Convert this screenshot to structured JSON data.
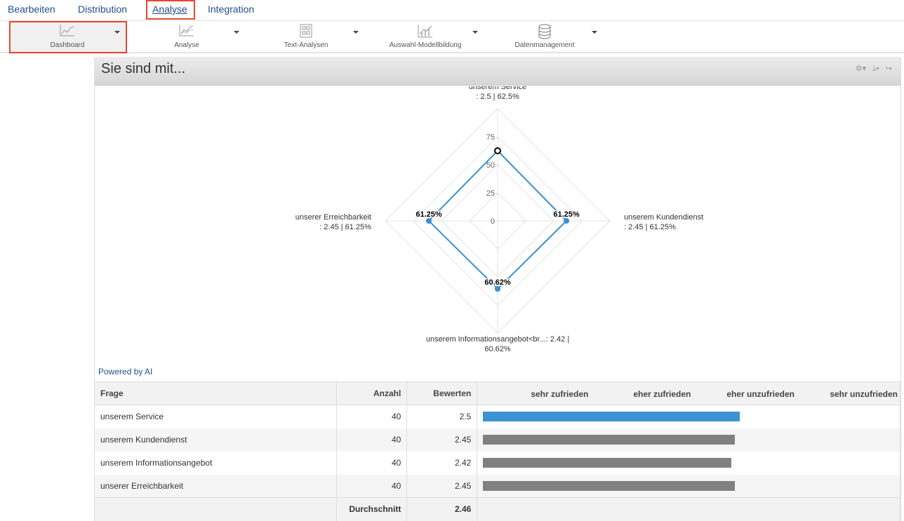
{
  "topnav": {
    "items": [
      {
        "label": "Bearbeiten"
      },
      {
        "label": "Distribution"
      },
      {
        "label": "Analyse"
      },
      {
        "label": "Integration"
      }
    ]
  },
  "toolbar": {
    "items": [
      {
        "label": "Dashboard",
        "icon": "line-chart-icon"
      },
      {
        "label": "Analyse",
        "icon": "area-chart-icon"
      },
      {
        "label": "Text-Analysen",
        "icon": "text-analysis-icon"
      },
      {
        "label": "Auswahl-Modellbildung",
        "icon": "model-chart-icon"
      },
      {
        "label": "Datenmanagement",
        "icon": "database-icon"
      }
    ]
  },
  "panel": {
    "title": "Sie sind mit...",
    "powered_by": "Powered by AI"
  },
  "chart_data": {
    "type": "radar",
    "axes": [
      {
        "line1": "unserem Service",
        "line2": ": 2.5 | 62.5%"
      },
      {
        "line1": "unserem Kundendienst",
        "line2": ": 2.45 | 61.25%"
      },
      {
        "line1": "unserem Informationsangebot<br...: 2.42 |",
        "line2": "60.62%"
      },
      {
        "line1": "unserer Erreichbarkeit",
        "line2": ": 2.45 | 61.25%"
      }
    ],
    "values": [
      62.5,
      61.25,
      60.62,
      61.25
    ],
    "data_labels": [
      "",
      "61.25%",
      "60.62%",
      "61.25%"
    ],
    "ticks": [
      "0",
      "25",
      "50",
      "75"
    ],
    "range": [
      0,
      100
    ],
    "series_color": "#3b8fd1"
  },
  "table": {
    "headers": {
      "frage": "Frage",
      "anzahl": "Anzahl",
      "bewerten": "Bewerten"
    },
    "scale": [
      "sehr zufrieden",
      "eher zufrieden",
      "eher unzufrieden",
      "sehr unzufrieden"
    ],
    "rows": [
      {
        "frage": "unserem Service",
        "anzahl": "40",
        "bewerten": "2.5",
        "value": 2.5,
        "color": "#3b93d3"
      },
      {
        "frage": "unserem Kundendienst",
        "anzahl": "40",
        "bewerten": "2.45",
        "value": 2.45,
        "color": "#808080"
      },
      {
        "frage": "unserem Informationsangebot",
        "anzahl": "40",
        "bewerten": "2.42",
        "value": 2.42,
        "color": "#808080"
      },
      {
        "frage": "unserer Erreichbarkeit",
        "anzahl": "40",
        "bewerten": "2.45",
        "value": 2.45,
        "color": "#808080"
      }
    ],
    "footer": {
      "label": "Durchschnitt",
      "value": "2.46"
    }
  },
  "colors": {
    "highlight": "#e8472c",
    "nav_text": "#1f4e8c"
  }
}
